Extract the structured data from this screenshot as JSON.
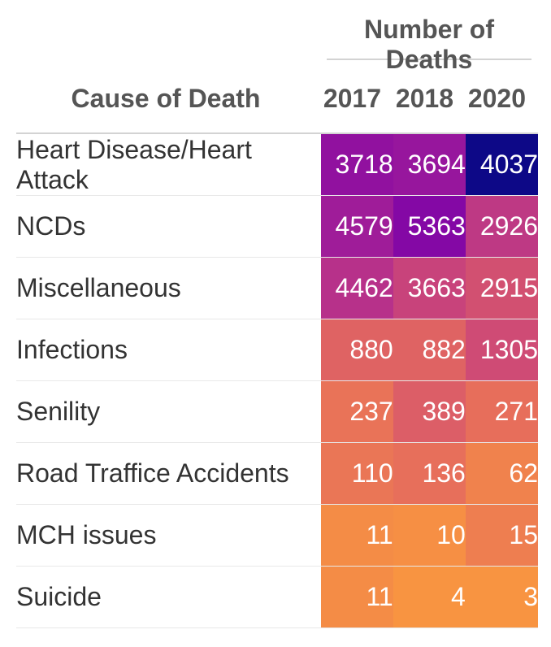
{
  "chart_data": {
    "type": "table",
    "spanner": "Number of Deaths",
    "row_header": "Cause of Death",
    "columns": [
      "2017",
      "2018",
      "2020"
    ],
    "rows": [
      {
        "cause": "Heart Disease/Heart Attack",
        "values": [
          3718,
          3694,
          4037
        ]
      },
      {
        "cause": "NCDs",
        "values": [
          4579,
          5363,
          2926
        ]
      },
      {
        "cause": "Miscellaneous",
        "values": [
          4462,
          3663,
          2915
        ]
      },
      {
        "cause": "Infections",
        "values": [
          880,
          882,
          1305
        ]
      },
      {
        "cause": "Senility",
        "values": [
          237,
          389,
          271
        ]
      },
      {
        "cause": "Road Traffice Accidents",
        "values": [
          110,
          136,
          62
        ]
      },
      {
        "cause": "MCH issues",
        "values": [
          11,
          10,
          15
        ]
      },
      {
        "cause": "Suicide",
        "values": [
          11,
          4,
          3
        ]
      }
    ],
    "colors": {
      "scale": [
        "#0d0887",
        "#4c02a1",
        "#7e03a8",
        "#a92395",
        "#cc4778",
        "#e56b5d",
        "#f89441"
      ]
    }
  }
}
